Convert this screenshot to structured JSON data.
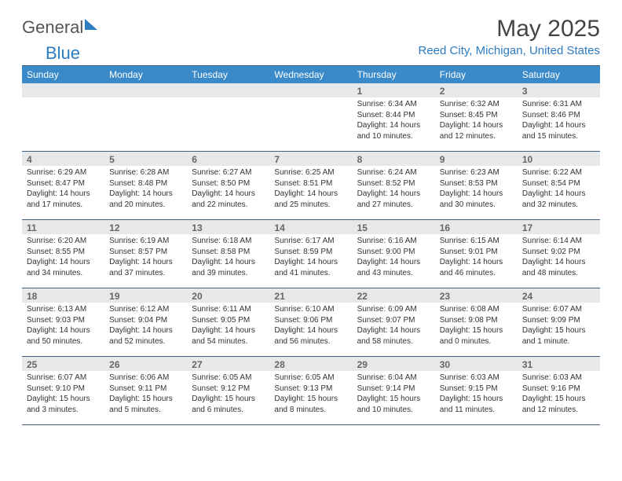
{
  "logo": {
    "word1": "General",
    "word2": "Blue"
  },
  "title": "May 2025",
  "location": "Reed City, Michigan, United States",
  "week_headers": [
    "Sunday",
    "Monday",
    "Tuesday",
    "Wednesday",
    "Thursday",
    "Friday",
    "Saturday"
  ],
  "colors": {
    "header_bg": "#3a8ac9",
    "header_text": "#ffffff",
    "daynum_bg": "#e7e8ea",
    "row_border": "#406080",
    "accent_blue": "#2d7cc1"
  },
  "weeks": [
    [
      null,
      null,
      null,
      null,
      {
        "day": "1",
        "sunrise": "Sunrise: 6:34 AM",
        "sunset": "Sunset: 8:44 PM",
        "daylight": "Daylight: 14 hours and 10 minutes."
      },
      {
        "day": "2",
        "sunrise": "Sunrise: 6:32 AM",
        "sunset": "Sunset: 8:45 PM",
        "daylight": "Daylight: 14 hours and 12 minutes."
      },
      {
        "day": "3",
        "sunrise": "Sunrise: 6:31 AM",
        "sunset": "Sunset: 8:46 PM",
        "daylight": "Daylight: 14 hours and 15 minutes."
      }
    ],
    [
      {
        "day": "4",
        "sunrise": "Sunrise: 6:29 AM",
        "sunset": "Sunset: 8:47 PM",
        "daylight": "Daylight: 14 hours and 17 minutes."
      },
      {
        "day": "5",
        "sunrise": "Sunrise: 6:28 AM",
        "sunset": "Sunset: 8:48 PM",
        "daylight": "Daylight: 14 hours and 20 minutes."
      },
      {
        "day": "6",
        "sunrise": "Sunrise: 6:27 AM",
        "sunset": "Sunset: 8:50 PM",
        "daylight": "Daylight: 14 hours and 22 minutes."
      },
      {
        "day": "7",
        "sunrise": "Sunrise: 6:25 AM",
        "sunset": "Sunset: 8:51 PM",
        "daylight": "Daylight: 14 hours and 25 minutes."
      },
      {
        "day": "8",
        "sunrise": "Sunrise: 6:24 AM",
        "sunset": "Sunset: 8:52 PM",
        "daylight": "Daylight: 14 hours and 27 minutes."
      },
      {
        "day": "9",
        "sunrise": "Sunrise: 6:23 AM",
        "sunset": "Sunset: 8:53 PM",
        "daylight": "Daylight: 14 hours and 30 minutes."
      },
      {
        "day": "10",
        "sunrise": "Sunrise: 6:22 AM",
        "sunset": "Sunset: 8:54 PM",
        "daylight": "Daylight: 14 hours and 32 minutes."
      }
    ],
    [
      {
        "day": "11",
        "sunrise": "Sunrise: 6:20 AM",
        "sunset": "Sunset: 8:55 PM",
        "daylight": "Daylight: 14 hours and 34 minutes."
      },
      {
        "day": "12",
        "sunrise": "Sunrise: 6:19 AM",
        "sunset": "Sunset: 8:57 PM",
        "daylight": "Daylight: 14 hours and 37 minutes."
      },
      {
        "day": "13",
        "sunrise": "Sunrise: 6:18 AM",
        "sunset": "Sunset: 8:58 PM",
        "daylight": "Daylight: 14 hours and 39 minutes."
      },
      {
        "day": "14",
        "sunrise": "Sunrise: 6:17 AM",
        "sunset": "Sunset: 8:59 PM",
        "daylight": "Daylight: 14 hours and 41 minutes."
      },
      {
        "day": "15",
        "sunrise": "Sunrise: 6:16 AM",
        "sunset": "Sunset: 9:00 PM",
        "daylight": "Daylight: 14 hours and 43 minutes."
      },
      {
        "day": "16",
        "sunrise": "Sunrise: 6:15 AM",
        "sunset": "Sunset: 9:01 PM",
        "daylight": "Daylight: 14 hours and 46 minutes."
      },
      {
        "day": "17",
        "sunrise": "Sunrise: 6:14 AM",
        "sunset": "Sunset: 9:02 PM",
        "daylight": "Daylight: 14 hours and 48 minutes."
      }
    ],
    [
      {
        "day": "18",
        "sunrise": "Sunrise: 6:13 AM",
        "sunset": "Sunset: 9:03 PM",
        "daylight": "Daylight: 14 hours and 50 minutes."
      },
      {
        "day": "19",
        "sunrise": "Sunrise: 6:12 AM",
        "sunset": "Sunset: 9:04 PM",
        "daylight": "Daylight: 14 hours and 52 minutes."
      },
      {
        "day": "20",
        "sunrise": "Sunrise: 6:11 AM",
        "sunset": "Sunset: 9:05 PM",
        "daylight": "Daylight: 14 hours and 54 minutes."
      },
      {
        "day": "21",
        "sunrise": "Sunrise: 6:10 AM",
        "sunset": "Sunset: 9:06 PM",
        "daylight": "Daylight: 14 hours and 56 minutes."
      },
      {
        "day": "22",
        "sunrise": "Sunrise: 6:09 AM",
        "sunset": "Sunset: 9:07 PM",
        "daylight": "Daylight: 14 hours and 58 minutes."
      },
      {
        "day": "23",
        "sunrise": "Sunrise: 6:08 AM",
        "sunset": "Sunset: 9:08 PM",
        "daylight": "Daylight: 15 hours and 0 minutes."
      },
      {
        "day": "24",
        "sunrise": "Sunrise: 6:07 AM",
        "sunset": "Sunset: 9:09 PM",
        "daylight": "Daylight: 15 hours and 1 minute."
      }
    ],
    [
      {
        "day": "25",
        "sunrise": "Sunrise: 6:07 AM",
        "sunset": "Sunset: 9:10 PM",
        "daylight": "Daylight: 15 hours and 3 minutes."
      },
      {
        "day": "26",
        "sunrise": "Sunrise: 6:06 AM",
        "sunset": "Sunset: 9:11 PM",
        "daylight": "Daylight: 15 hours and 5 minutes."
      },
      {
        "day": "27",
        "sunrise": "Sunrise: 6:05 AM",
        "sunset": "Sunset: 9:12 PM",
        "daylight": "Daylight: 15 hours and 6 minutes."
      },
      {
        "day": "28",
        "sunrise": "Sunrise: 6:05 AM",
        "sunset": "Sunset: 9:13 PM",
        "daylight": "Daylight: 15 hours and 8 minutes."
      },
      {
        "day": "29",
        "sunrise": "Sunrise: 6:04 AM",
        "sunset": "Sunset: 9:14 PM",
        "daylight": "Daylight: 15 hours and 10 minutes."
      },
      {
        "day": "30",
        "sunrise": "Sunrise: 6:03 AM",
        "sunset": "Sunset: 9:15 PM",
        "daylight": "Daylight: 15 hours and 11 minutes."
      },
      {
        "day": "31",
        "sunrise": "Sunrise: 6:03 AM",
        "sunset": "Sunset: 9:16 PM",
        "daylight": "Daylight: 15 hours and 12 minutes."
      }
    ]
  ]
}
